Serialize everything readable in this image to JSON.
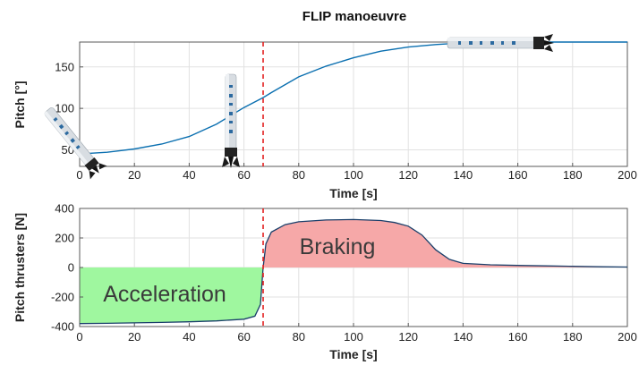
{
  "chart_data": [
    {
      "type": "line",
      "title": "FLIP manoeuvre",
      "xlabel": "Time [s]",
      "ylabel": "Pitch [°]",
      "xlim": [
        0,
        200
      ],
      "ylim": [
        30,
        180
      ],
      "xticks": [
        0,
        20,
        40,
        60,
        80,
        100,
        120,
        140,
        160,
        180,
        200
      ],
      "yticks": [
        50,
        100,
        150
      ],
      "grid": true,
      "event_marker_x": 67,
      "series": [
        {
          "color": "#0a6fb0",
          "x": [
            0,
            10,
            20,
            30,
            40,
            50,
            60,
            67,
            70,
            80,
            90,
            100,
            110,
            120,
            130,
            140,
            150,
            160,
            170,
            180,
            190,
            200
          ],
          "y": [
            45,
            47,
            51,
            57,
            66,
            81,
            101,
            113,
            119,
            138,
            151,
            161,
            169,
            174,
            177,
            179,
            180,
            180,
            180,
            180,
            180,
            180
          ]
        }
      ],
      "illustrations": [
        "rocket-tilted-icon",
        "rocket-vertical-icon",
        "rocket-horizontal-icon"
      ]
    },
    {
      "type": "area",
      "title": "",
      "xlabel": "Time [s]",
      "ylabel": "Pitch thrusters [N]",
      "xlim": [
        0,
        200
      ],
      "ylim": [
        -400,
        400
      ],
      "xticks": [
        0,
        20,
        40,
        60,
        80,
        100,
        120,
        140,
        160,
        180,
        200
      ],
      "yticks": [
        -400,
        -200,
        0,
        200,
        400
      ],
      "grid": true,
      "event_marker_x": 67,
      "regions": [
        {
          "label": "Acceleration",
          "color": "#9ff79f"
        },
        {
          "label": "Braking",
          "color": "#f6a8a8"
        }
      ],
      "series": [
        {
          "color": "#1a3f6a",
          "x": [
            0,
            10,
            20,
            30,
            40,
            50,
            60,
            64,
            66,
            67,
            68,
            70,
            75,
            80,
            90,
            100,
            110,
            115,
            120,
            125,
            130,
            135,
            140,
            150,
            160,
            170,
            180,
            190,
            200
          ],
          "y": [
            -380,
            -378,
            -375,
            -372,
            -368,
            -362,
            -350,
            -330,
            -250,
            0,
            160,
            240,
            290,
            310,
            322,
            325,
            318,
            305,
            280,
            220,
            120,
            55,
            28,
            18,
            14,
            11,
            8,
            5,
            3
          ]
        }
      ]
    }
  ]
}
